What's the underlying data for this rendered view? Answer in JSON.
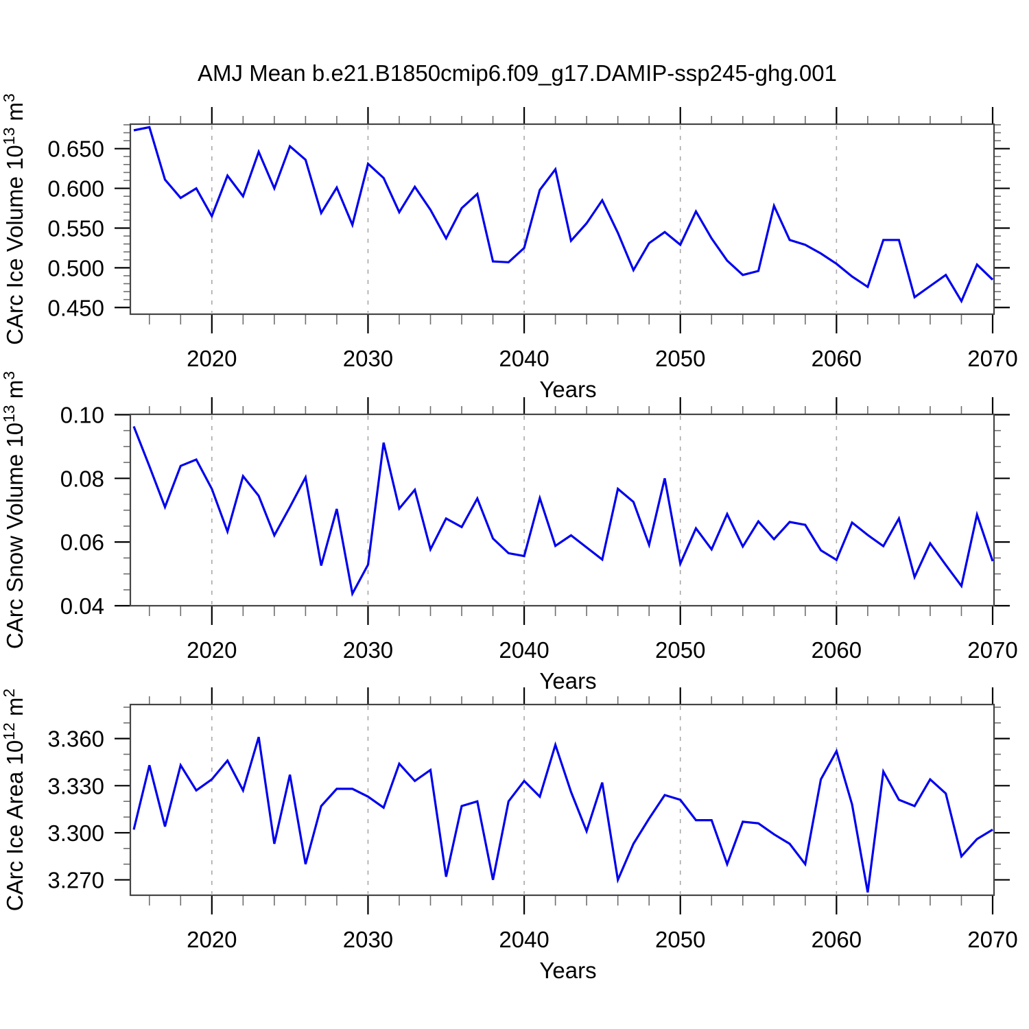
{
  "title": "AMJ Mean b.e21.B1850cmip6.f09_g17.DAMIP-ssp245-ghg.001",
  "line_color": "#0000ee",
  "grid_color": "#a8a8a8",
  "frame_color": "#444444",
  "major_tick_color": "#000000",
  "minor_tick_color": "#6e6e6e",
  "years": [
    2015,
    2016,
    2017,
    2018,
    2019,
    2020,
    2021,
    2022,
    2023,
    2024,
    2025,
    2026,
    2027,
    2028,
    2029,
    2030,
    2031,
    2032,
    2033,
    2034,
    2035,
    2036,
    2037,
    2038,
    2039,
    2040,
    2041,
    2042,
    2043,
    2044,
    2045,
    2046,
    2047,
    2048,
    2049,
    2050,
    2051,
    2052,
    2053,
    2054,
    2055,
    2056,
    2057,
    2058,
    2059,
    2060,
    2061,
    2062,
    2063,
    2064,
    2065,
    2066,
    2067,
    2068,
    2069,
    2070
  ],
  "x_axis": {
    "label": "Years",
    "range": [
      2015,
      2070
    ],
    "major_ticks": [
      2020,
      2030,
      2040,
      2050,
      2060,
      2070
    ],
    "tick_labels": [
      "2020",
      "2030",
      "2040",
      "2050",
      "2060",
      "2070"
    ],
    "minor_step": 2,
    "grid_lines": [
      2020,
      2030,
      2040,
      2050,
      2060
    ]
  },
  "chart_data": [
    {
      "type": "line",
      "name": "ice-volume",
      "ylabel_plain": "CArc Ice Volume 10^13 m^3",
      "ylabel_parts": {
        "base": "CArc Ice Volume 10",
        "base_exp": "13",
        "unit": " m",
        "unit_exp": "3"
      },
      "xlabel": "Years",
      "ylim": [
        0.4416,
        0.6808
      ],
      "y_major_ticks": [
        0.45,
        0.5,
        0.55,
        0.6,
        0.65
      ],
      "y_tick_labels": [
        "0.450",
        "0.500",
        "0.550",
        "0.600",
        "0.650"
      ],
      "y_minor_step": 0.01,
      "grid": "x-only",
      "legend": "none",
      "values": [
        0.673,
        0.677,
        0.611,
        0.588,
        0.6,
        0.565,
        0.616,
        0.59,
        0.646,
        0.6,
        0.653,
        0.636,
        0.569,
        0.601,
        0.554,
        0.631,
        0.613,
        0.57,
        0.602,
        0.573,
        0.537,
        0.575,
        0.593,
        0.508,
        0.507,
        0.525,
        0.598,
        0.624,
        0.534,
        0.556,
        0.585,
        0.544,
        0.497,
        0.531,
        0.545,
        0.529,
        0.571,
        0.537,
        0.509,
        0.491,
        0.496,
        0.578,
        0.535,
        0.529,
        0.518,
        0.505,
        0.489,
        0.476,
        0.535,
        0.535,
        0.463,
        0.477,
        0.491,
        0.458,
        0.504,
        0.485
      ]
    },
    {
      "type": "line",
      "name": "snow-volume",
      "ylabel_plain": "CArc Snow Volume 10^13 m^3",
      "ylabel_parts": {
        "base": "CArc Snow Volume 10",
        "base_exp": "13",
        "unit": " m",
        "unit_exp": "3"
      },
      "xlabel": "Years",
      "ylim": [
        0.04,
        0.1001
      ],
      "y_major_ticks": [
        0.04,
        0.06,
        0.08,
        0.1
      ],
      "y_tick_labels": [
        "0.04",
        "0.06",
        "0.08",
        "0.10"
      ],
      "y_minor_step": 0.005,
      "grid": "x-only",
      "legend": "none",
      "values": [
        0.0963,
        0.0838,
        0.071,
        0.0839,
        0.0859,
        0.0767,
        0.0633,
        0.0807,
        0.0745,
        0.0621,
        0.071,
        0.0803,
        0.0526,
        0.0704,
        0.0438,
        0.0529,
        0.0912,
        0.0705,
        0.0764,
        0.0577,
        0.0674,
        0.0647,
        0.0737,
        0.0611,
        0.0565,
        0.0556,
        0.0738,
        0.0588,
        0.0621,
        0.0583,
        0.0545,
        0.0767,
        0.0726,
        0.0591,
        0.08,
        0.0532,
        0.0643,
        0.0577,
        0.0688,
        0.0586,
        0.0665,
        0.0609,
        0.0663,
        0.0654,
        0.0574,
        0.0544,
        0.0661,
        0.0622,
        0.0587,
        0.0674,
        0.049,
        0.0596,
        0.0528,
        0.0462,
        0.0686,
        0.054
      ]
    },
    {
      "type": "line",
      "name": "ice-area",
      "ylabel_plain": "CArc Ice Area 10^12 m^2",
      "ylabel_parts": {
        "base": "CArc Ice Area 10",
        "base_exp": "12",
        "unit": " m",
        "unit_exp": "2"
      },
      "xlabel": "Years",
      "ylim": [
        3.2602,
        3.3817
      ],
      "y_major_ticks": [
        3.27,
        3.3,
        3.33,
        3.36
      ],
      "y_tick_labels": [
        "3.270",
        "3.300",
        "3.330",
        "3.360"
      ],
      "y_minor_step": 0.01,
      "grid": "x-only",
      "legend": "none",
      "values": [
        3.302,
        3.343,
        3.304,
        3.343,
        3.327,
        3.334,
        3.346,
        3.327,
        3.361,
        3.293,
        3.337,
        3.28,
        3.317,
        3.328,
        3.328,
        3.323,
        3.316,
        3.344,
        3.333,
        3.34,
        3.272,
        3.317,
        3.32,
        3.27,
        3.32,
        3.333,
        3.323,
        3.356,
        3.326,
        3.301,
        3.332,
        3.27,
        3.293,
        3.309,
        3.324,
        3.321,
        3.308,
        3.308,
        3.28,
        3.307,
        3.306,
        3.299,
        3.293,
        3.28,
        3.334,
        3.352,
        3.318,
        3.262,
        3.339,
        3.321,
        3.317,
        3.334,
        3.325,
        3.285,
        3.296,
        3.302
      ]
    }
  ]
}
